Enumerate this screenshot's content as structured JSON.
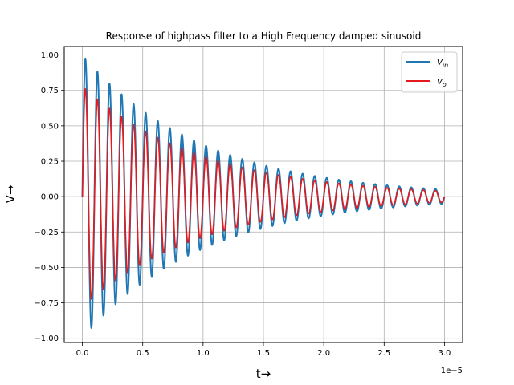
{
  "chart_data": {
    "type": "line",
    "title": "Response of highpass filter to a High Frequency damped sinusoid",
    "xlabel": "t→",
    "ylabel": "V→",
    "x_offset_label": "1e−5",
    "xlim": [
      -0.15,
      3.15
    ],
    "ylim": [
      -1.03,
      1.06
    ],
    "x_unit_multiplier": "1e-5",
    "x_ticks": [
      0.0,
      0.5,
      1.0,
      1.5,
      2.0,
      2.5,
      3.0
    ],
    "x_tick_labels": [
      "0.0",
      "0.5",
      "1.0",
      "1.5",
      "2.0",
      "2.5",
      "3.0"
    ],
    "y_ticks": [
      -1.0,
      -0.75,
      -0.5,
      -0.25,
      0.0,
      0.25,
      0.5,
      0.75,
      1.0
    ],
    "y_tick_labels": [
      "−1.00",
      "−0.75",
      "−0.50",
      "−0.25",
      "0.00",
      "0.25",
      "0.50",
      "0.75",
      "1.00"
    ],
    "grid": true,
    "legend_position": "top-right",
    "series": [
      {
        "name": "V_in",
        "legend_main": "V",
        "legend_sub": "in",
        "color": "#1f77b4",
        "x_range": [
          0.0,
          3.0
        ],
        "cycles": 30,
        "amplitude": 1.0,
        "decay_to": 0.05
      },
      {
        "name": "V_o",
        "legend_main": "V",
        "legend_sub": "o",
        "color": "#e41a1c",
        "x_range": [
          0.0,
          3.0
        ],
        "cycles": 30,
        "amplitude": 0.78,
        "decay_to": 0.05
      }
    ]
  }
}
